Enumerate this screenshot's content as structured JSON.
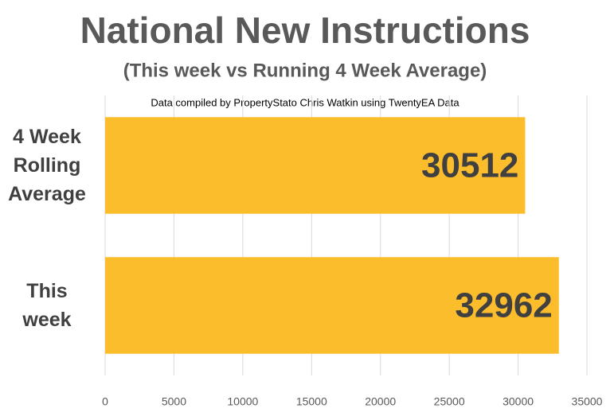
{
  "chart_data": {
    "type": "bar",
    "orientation": "horizontal",
    "title": "National New Instructions",
    "subtitle": "(This week vs Running 4 Week Average)",
    "annotation": "Data compiled by PropertyStato Chris Watkin using TwentyEA Data",
    "categories": [
      "4 Week Rolling Average",
      "This week"
    ],
    "values": [
      30512,
      32962
    ],
    "color": "#fbbd2c",
    "xlim": [
      0,
      35000
    ],
    "xticks": [
      0,
      5000,
      10000,
      15000,
      20000,
      25000,
      30000,
      35000
    ],
    "grid": true
  }
}
